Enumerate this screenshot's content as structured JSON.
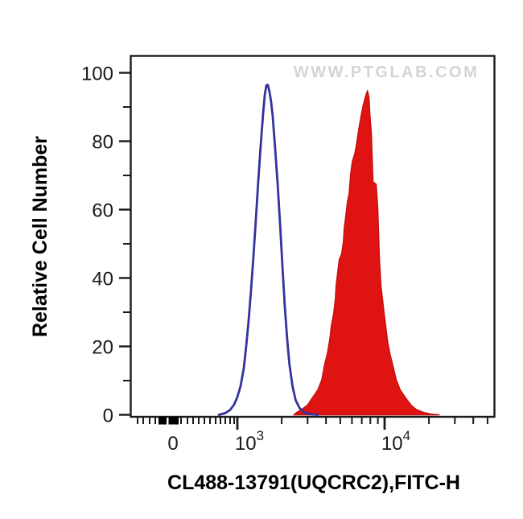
{
  "watermark": {
    "text": "WWW.PTGLAB.COM",
    "color": "#d4d4d4"
  },
  "y_axis": {
    "title": "Relative Cell Number",
    "major_ticks": [
      0,
      20,
      40,
      60,
      80,
      100
    ],
    "minor_ticks": [
      10,
      30,
      50,
      70,
      90
    ]
  },
  "x_axis": {
    "title": "CL488-13791(UQCRC2),FITC-H",
    "zero_tick_label": "0",
    "major_tick_labels": [
      {
        "mantissa": "10",
        "exponent": "3"
      },
      {
        "mantissa": "10",
        "exponent": "4"
      }
    ],
    "scale_type": "biexponential-log"
  },
  "colors": {
    "axis": "#1a1a1a",
    "background": "#ffffff",
    "blue_line": "#32329e",
    "red_fill": "#e01313",
    "red_line": "#c41010",
    "zero_spike": "#000000"
  },
  "chart_data": {
    "type": "area",
    "title": "",
    "xlabel": "CL488-13791(UQCRC2),FITC-H",
    "ylabel": "Relative Cell Number",
    "ylim": [
      0,
      105
    ],
    "x_scale": "biexponential (log decades 10^3 to 10^4 labeled, 0 labeled at origin)",
    "grid": false,
    "legend": "none",
    "zero_spike": {
      "present": true,
      "description": "small black event spike on axis near x=0"
    },
    "series": [
      {
        "name": "blue_outline_histogram",
        "style": "open outline",
        "line_color": "#32329e",
        "fill": "none",
        "peak_x": 1590,
        "peak_height": 96.5,
        "points": [
          [
            749,
            0
          ],
          [
            828,
            0.5
          ],
          [
            892,
            1.4
          ],
          [
            950,
            3
          ],
          [
            1000,
            5.2
          ],
          [
            1052,
            8.4
          ],
          [
            1106,
            13.6
          ],
          [
            1148,
            20.1
          ],
          [
            1192,
            27.6
          ],
          [
            1238,
            36.5
          ],
          [
            1286,
            46.4
          ],
          [
            1335,
            57.1
          ],
          [
            1386,
            68.1
          ],
          [
            1440,
            78.7
          ],
          [
            1495,
            88.1
          ],
          [
            1533,
            93.4
          ],
          [
            1572,
            96.3
          ],
          [
            1611,
            96.5
          ],
          [
            1651,
            94.6
          ],
          [
            1692,
            91.8
          ],
          [
            1735,
            87.6
          ],
          [
            1800,
            78.7
          ],
          [
            1878,
            67.4
          ],
          [
            1950,
            55.7
          ],
          [
            2022,
            43.6
          ],
          [
            2098,
            31.9
          ],
          [
            2175,
            22.5
          ],
          [
            2254,
            15
          ],
          [
            2368,
            8.4
          ],
          [
            2490,
            4.2
          ],
          [
            2650,
            1.9
          ],
          [
            2850,
            0.7
          ],
          [
            3140,
            0.2
          ],
          [
            3520,
            0
          ]
        ]
      },
      {
        "name": "red_filled_histogram",
        "style": "filled",
        "line_color": "#c41010",
        "fill": "#e01313",
        "peak_x": 7645,
        "peak_height": 94.8,
        "points": [
          [
            2414,
            0
          ],
          [
            2570,
            0.9
          ],
          [
            2735,
            1.6
          ],
          [
            2990,
            2.8
          ],
          [
            3222,
            4.9
          ],
          [
            3520,
            7.3
          ],
          [
            3747,
            10.3
          ],
          [
            3890,
            14.3
          ],
          [
            4088,
            18
          ],
          [
            4242,
            22
          ],
          [
            4348,
            26
          ],
          [
            4511,
            29.7
          ],
          [
            4624,
            33.7
          ],
          [
            4681,
            37.7
          ],
          [
            4797,
            41.5
          ],
          [
            4916,
            45.4
          ],
          [
            5100,
            47
          ],
          [
            5250,
            50.6
          ],
          [
            5320,
            54.6
          ],
          [
            5455,
            58.3
          ],
          [
            5594,
            62.3
          ],
          [
            5735,
            64.6
          ],
          [
            5880,
            70.5
          ],
          [
            6030,
            74
          ],
          [
            6260,
            76.3
          ],
          [
            6420,
            78.7
          ],
          [
            6665,
            83.4
          ],
          [
            6920,
            87.4
          ],
          [
            7185,
            90.9
          ],
          [
            7460,
            93.4
          ],
          [
            7645,
            94.8
          ],
          [
            7840,
            92.7
          ],
          [
            7940,
            88
          ],
          [
            8140,
            82.2
          ],
          [
            8240,
            75.2
          ],
          [
            8345,
            68.1
          ],
          [
            8770,
            67.4
          ],
          [
            8995,
            60
          ],
          [
            9110,
            52.9
          ],
          [
            9230,
            45.4
          ],
          [
            9340,
            41.5
          ],
          [
            9450,
            37.7
          ],
          [
            9690,
            33.7
          ],
          [
            9930,
            29.7
          ],
          [
            10180,
            26
          ],
          [
            10440,
            22
          ],
          [
            10850,
            18
          ],
          [
            11400,
            14.3
          ],
          [
            11990,
            10.3
          ],
          [
            12760,
            7.3
          ],
          [
            13920,
            4.9
          ],
          [
            15170,
            2.8
          ],
          [
            16310,
            1.6
          ],
          [
            18400,
            0.7
          ],
          [
            20630,
            0.2
          ],
          [
            23500,
            0
          ]
        ]
      }
    ]
  }
}
